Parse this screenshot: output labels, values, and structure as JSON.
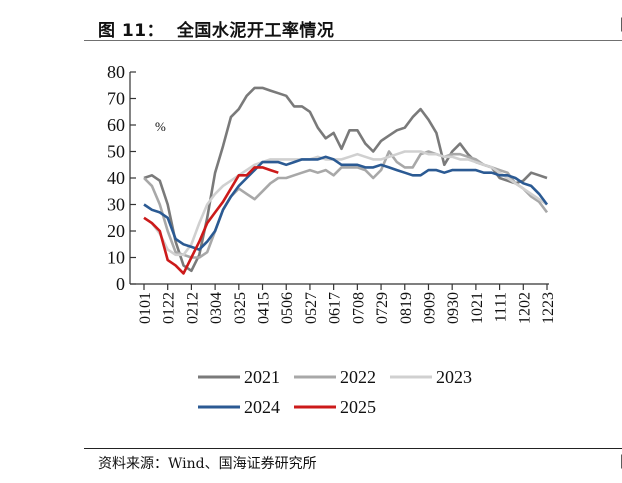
{
  "figure": {
    "label": "图 11：",
    "title": "全国水泥开工率情况",
    "source": "资料来源：Wind、国海证券研究所"
  },
  "chart_data": {
    "type": "line",
    "title": "全国水泥开工率情况",
    "xlabel": "",
    "ylabel": "%",
    "unit_label": "%",
    "ylim": [
      0,
      80
    ],
    "yticks": [
      0,
      10,
      20,
      30,
      40,
      50,
      60,
      70,
      80
    ],
    "xtick_labels": [
      "0101",
      "0122",
      "0212",
      "0304",
      "0325",
      "0415",
      "0506",
      "0527",
      "0617",
      "0708",
      "0729",
      "0819",
      "0909",
      "0930",
      "1021",
      "1111",
      "1202",
      "1223"
    ],
    "points_per_tick": 3,
    "num_points": 52,
    "grid": false,
    "legend": {
      "placement": "bottom",
      "entries": [
        "2021",
        "2022",
        "2023",
        "2024",
        "2025"
      ]
    },
    "series": [
      {
        "name": "2021",
        "color": "#7a7a7a",
        "values": [
          40,
          41,
          39,
          30,
          16,
          7,
          5,
          11,
          25,
          42,
          52,
          63,
          66,
          71,
          74,
          74,
          73,
          72,
          71,
          67,
          67,
          65,
          59,
          55,
          57,
          51,
          58,
          58,
          53,
          50,
          54,
          56,
          58,
          59,
          63,
          66,
          62,
          57,
          45,
          50,
          53,
          49,
          46,
          45,
          44,
          40,
          39,
          38,
          39,
          42,
          41,
          40
        ]
      },
      {
        "name": "2022",
        "color": "#a8a8a8",
        "values": [
          40,
          37,
          30,
          20,
          12,
          11,
          10,
          10,
          12,
          20,
          28,
          33,
          36,
          34,
          32,
          35,
          38,
          40,
          40,
          41,
          42,
          43,
          42,
          43,
          41,
          44,
          44,
          44,
          43,
          40,
          43,
          50,
          46,
          44,
          44,
          49,
          50,
          49,
          48,
          49,
          49,
          48,
          47,
          45,
          44,
          43,
          42,
          38,
          36,
          33,
          31,
          27
        ]
      },
      {
        "name": "2023",
        "color": "#d0d0d0",
        "values": [
          25,
          23,
          19,
          13,
          11,
          11,
          15,
          23,
          30,
          34,
          37,
          39,
          41,
          43,
          45,
          46,
          47,
          47,
          47,
          47,
          47,
          47,
          48,
          47,
          47,
          47,
          48,
          49,
          48,
          47,
          47,
          48,
          49,
          50,
          50,
          50,
          49,
          49,
          48,
          48,
          47,
          47,
          46,
          45,
          44,
          42,
          40,
          38,
          36,
          34,
          32,
          30
        ]
      },
      {
        "name": "2024",
        "color": "#2b5a93",
        "values": [
          30,
          28,
          27,
          25,
          17,
          15,
          14,
          13,
          16,
          20,
          28,
          33,
          37,
          40,
          43,
          46,
          46,
          46,
          45,
          46,
          47,
          47,
          47,
          48,
          47,
          45,
          45,
          45,
          44,
          44,
          45,
          44,
          43,
          42,
          41,
          41,
          43,
          43,
          42,
          43,
          43,
          43,
          43,
          42,
          42,
          41,
          41,
          40,
          38,
          37,
          34,
          30
        ]
      },
      {
        "name": "2025",
        "color": "#cc1a1a",
        "values": [
          25,
          23,
          20,
          9,
          7,
          4,
          10,
          16,
          23,
          27,
          31,
          36,
          41,
          41,
          44,
          44,
          43,
          42
        ]
      }
    ]
  }
}
